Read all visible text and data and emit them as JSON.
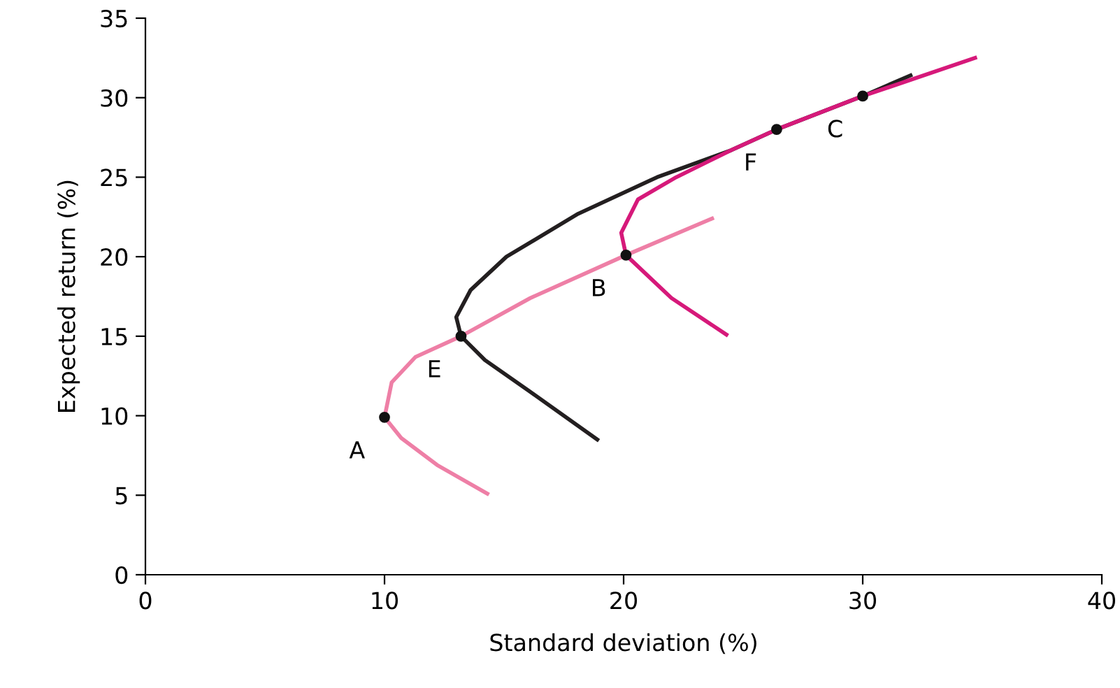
{
  "chart_data": {
    "type": "line",
    "xlabel": "Standard deviation (%)",
    "ylabel": "Expected return (%)",
    "xlim": [
      0,
      40
    ],
    "xticks": [
      0,
      10,
      20,
      30,
      40
    ],
    "ylim": [
      0,
      35
    ],
    "yticks": [
      0,
      5,
      10,
      15,
      20,
      25,
      30,
      35
    ],
    "grid": false,
    "line_style": "solid",
    "series": [
      {
        "color": "#ee7fa6",
        "x": [
          14.3,
          12.2,
          10.7,
          10.0,
          10.3,
          11.3,
          13.2,
          16.1,
          20.1,
          23.7
        ],
        "values": [
          5.1,
          6.9,
          8.6,
          9.9,
          12.1,
          13.7,
          15.0,
          17.4,
          20.1,
          22.4
        ]
      },
      {
        "color": "#231f20",
        "x": [
          18.9,
          16.1,
          14.2,
          13.2,
          13.0,
          13.6,
          15.1,
          18.1,
          21.4,
          24.5,
          26.4,
          30.0,
          32.0
        ],
        "values": [
          8.5,
          11.5,
          13.5,
          15.0,
          16.2,
          17.9,
          20.0,
          22.7,
          25.0,
          26.7,
          28.0,
          30.1,
          31.4
        ]
      },
      {
        "color": "#d6197a",
        "x": [
          24.3,
          22.0,
          20.1,
          19.9,
          20.6,
          22.2,
          24.5,
          26.4,
          30.0,
          34.7
        ],
        "values": [
          15.1,
          17.4,
          20.1,
          21.5,
          23.6,
          25.0,
          26.7,
          28.0,
          30.1,
          32.5
        ]
      },
      {
        "type": "scatter",
        "color": "#111111",
        "marker": "circle",
        "x": [
          10.0,
          13.2,
          20.1,
          26.4,
          30.0
        ],
        "values": [
          9.9,
          15.0,
          20.1,
          28.0,
          30.1
        ]
      }
    ],
    "annotations": [
      {
        "text": "A",
        "x": 10.0,
        "y": 9.9
      },
      {
        "text": "E",
        "x": 13.2,
        "y": 15.0
      },
      {
        "text": "B",
        "x": 20.1,
        "y": 20.1
      },
      {
        "text": "F",
        "x": 26.4,
        "y": 28.0
      },
      {
        "text": "C",
        "x": 30.0,
        "y": 30.1
      }
    ]
  }
}
